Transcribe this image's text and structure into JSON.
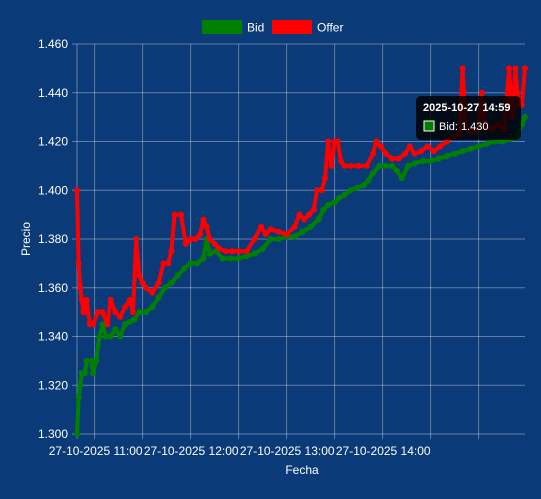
{
  "chart_data": {
    "type": "line",
    "xlabel": "Fecha",
    "ylabel": "Precio",
    "ylim": [
      1.3,
      1.46
    ],
    "x_range": [
      "2025-10-27 10:19",
      "2025-10-27 14:59"
    ],
    "x_ticks": [
      "27-10-2025 11:00",
      "27-10-2025 12:00",
      "27-10-2025 13:00",
      "27-10-2025 14:00"
    ],
    "y_ticks": [
      "1.300",
      "1.320",
      "1.340",
      "1.360",
      "1.380",
      "1.400",
      "1.420",
      "1.440",
      "1.460"
    ],
    "legend_position": "top-center",
    "grid": true,
    "series": [
      {
        "name": "Bid",
        "color": "#008000",
        "points": [
          [
            "2025-10-27 10:19",
            1.3
          ],
          [
            "2025-10-27 10:20",
            1.315
          ],
          [
            "2025-10-27 10:21",
            1.32
          ],
          [
            "2025-10-27 10:22",
            1.325
          ],
          [
            "2025-10-27 10:24",
            1.325
          ],
          [
            "2025-10-27 10:25",
            1.33
          ],
          [
            "2025-10-27 10:28",
            1.33
          ],
          [
            "2025-10-27 10:29",
            1.325
          ],
          [
            "2025-10-27 10:31",
            1.33
          ],
          [
            "2025-10-27 10:33",
            1.34
          ],
          [
            "2025-10-27 10:35",
            1.345
          ],
          [
            "2025-10-27 10:37",
            1.34
          ],
          [
            "2025-10-27 10:40",
            1.34
          ],
          [
            "2025-10-27 10:43",
            1.343
          ],
          [
            "2025-10-27 10:46",
            1.34
          ],
          [
            "2025-10-27 10:49",
            1.345
          ],
          [
            "2025-10-27 10:52",
            1.346
          ],
          [
            "2025-10-27 10:55",
            1.347
          ],
          [
            "2025-10-27 10:58",
            1.35
          ],
          [
            "2025-10-27 11:02",
            1.35
          ],
          [
            "2025-10-27 11:06",
            1.352
          ],
          [
            "2025-10-27 11:10",
            1.356
          ],
          [
            "2025-10-27 11:14",
            1.36
          ],
          [
            "2025-10-27 11:18",
            1.362
          ],
          [
            "2025-10-27 11:22",
            1.365
          ],
          [
            "2025-10-27 11:26",
            1.368
          ],
          [
            "2025-10-27 11:30",
            1.37
          ],
          [
            "2025-10-27 11:34",
            1.37
          ],
          [
            "2025-10-27 11:38",
            1.372
          ],
          [
            "2025-10-27 11:40",
            1.38
          ],
          [
            "2025-10-27 11:42",
            1.374
          ],
          [
            "2025-10-27 11:46",
            1.375
          ],
          [
            "2025-10-27 11:50",
            1.372
          ],
          [
            "2025-10-27 11:55",
            1.372
          ],
          [
            "2025-10-27 12:00",
            1.372
          ],
          [
            "2025-10-27 12:05",
            1.373
          ],
          [
            "2025-10-27 12:10",
            1.374
          ],
          [
            "2025-10-27 12:15",
            1.376
          ],
          [
            "2025-10-27 12:20",
            1.38
          ],
          [
            "2025-10-27 12:25",
            1.38
          ],
          [
            "2025-10-27 12:30",
            1.381
          ],
          [
            "2025-10-27 12:35",
            1.381
          ],
          [
            "2025-10-27 12:40",
            1.383
          ],
          [
            "2025-10-27 12:45",
            1.385
          ],
          [
            "2025-10-27 12:50",
            1.388
          ],
          [
            "2025-10-27 12:53",
            1.392
          ],
          [
            "2025-10-27 12:56",
            1.394
          ],
          [
            "2025-10-27 13:00",
            1.395
          ],
          [
            "2025-10-27 13:03",
            1.397
          ],
          [
            "2025-10-27 13:06",
            1.398
          ],
          [
            "2025-10-27 13:10",
            1.4
          ],
          [
            "2025-10-27 13:14",
            1.401
          ],
          [
            "2025-10-27 13:18",
            1.402
          ],
          [
            "2025-10-27 13:21",
            1.404
          ],
          [
            "2025-10-27 13:24",
            1.407
          ],
          [
            "2025-10-27 13:28",
            1.41
          ],
          [
            "2025-10-27 13:32",
            1.41
          ],
          [
            "2025-10-27 13:36",
            1.41
          ],
          [
            "2025-10-27 13:39",
            1.408
          ],
          [
            "2025-10-27 13:42",
            1.405
          ],
          [
            "2025-10-27 13:46",
            1.41
          ],
          [
            "2025-10-27 13:50",
            1.411
          ],
          [
            "2025-10-27 13:55",
            1.412
          ],
          [
            "2025-10-27 14:00",
            1.412
          ],
          [
            "2025-10-27 14:05",
            1.413
          ],
          [
            "2025-10-27 14:10",
            1.414
          ],
          [
            "2025-10-27 14:15",
            1.415
          ],
          [
            "2025-10-27 14:20",
            1.416
          ],
          [
            "2025-10-27 14:25",
            1.417
          ],
          [
            "2025-10-27 14:30",
            1.418
          ],
          [
            "2025-10-27 14:35",
            1.419
          ],
          [
            "2025-10-27 14:40",
            1.42
          ],
          [
            "2025-10-27 14:45",
            1.42
          ],
          [
            "2025-10-27 14:50",
            1.421
          ],
          [
            "2025-10-27 14:54",
            1.422
          ],
          [
            "2025-10-27 14:57",
            1.427
          ],
          [
            "2025-10-27 14:59",
            1.43
          ]
        ]
      },
      {
        "name": "Offer",
        "color": "#ff0000",
        "points": [
          [
            "2025-10-27 10:19",
            1.4
          ],
          [
            "2025-10-27 10:20",
            1.37
          ],
          [
            "2025-10-27 10:21",
            1.36
          ],
          [
            "2025-10-27 10:22",
            1.355
          ],
          [
            "2025-10-27 10:23",
            1.35
          ],
          [
            "2025-10-27 10:24",
            1.35
          ],
          [
            "2025-10-27 10:25",
            1.355
          ],
          [
            "2025-10-27 10:27",
            1.345
          ],
          [
            "2025-10-27 10:29",
            1.345
          ],
          [
            "2025-10-27 10:32",
            1.35
          ],
          [
            "2025-10-27 10:35",
            1.35
          ],
          [
            "2025-10-27 10:38",
            1.345
          ],
          [
            "2025-10-27 10:40",
            1.355
          ],
          [
            "2025-10-27 10:43",
            1.35
          ],
          [
            "2025-10-27 10:46",
            1.348
          ],
          [
            "2025-10-27 10:49",
            1.352
          ],
          [
            "2025-10-27 10:52",
            1.355
          ],
          [
            "2025-10-27 10:54",
            1.35
          ],
          [
            "2025-10-27 10:56",
            1.38
          ],
          [
            "2025-10-27 10:58",
            1.365
          ],
          [
            "2025-10-27 11:00",
            1.362
          ],
          [
            "2025-10-27 11:02",
            1.36
          ],
          [
            "2025-10-27 11:06",
            1.358
          ],
          [
            "2025-10-27 11:10",
            1.362
          ],
          [
            "2025-10-27 11:13",
            1.37
          ],
          [
            "2025-10-27 11:16",
            1.37
          ],
          [
            "2025-10-27 11:18",
            1.375
          ],
          [
            "2025-10-27 11:20",
            1.39
          ],
          [
            "2025-10-27 11:24",
            1.39
          ],
          [
            "2025-10-27 11:27",
            1.378
          ],
          [
            "2025-10-27 11:30",
            1.38
          ],
          [
            "2025-10-27 11:33",
            1.38
          ],
          [
            "2025-10-27 11:36",
            1.382
          ],
          [
            "2025-10-27 11:38",
            1.388
          ],
          [
            "2025-10-27 11:40",
            1.385
          ],
          [
            "2025-10-27 11:42",
            1.38
          ],
          [
            "2025-10-27 11:45",
            1.378
          ],
          [
            "2025-10-27 11:48",
            1.376
          ],
          [
            "2025-10-27 11:52",
            1.375
          ],
          [
            "2025-10-27 11:56",
            1.375
          ],
          [
            "2025-10-27 12:00",
            1.375
          ],
          [
            "2025-10-27 12:05",
            1.375
          ],
          [
            "2025-10-27 12:10",
            1.38
          ],
          [
            "2025-10-27 12:14",
            1.385
          ],
          [
            "2025-10-27 12:17",
            1.382
          ],
          [
            "2025-10-27 12:20",
            1.384
          ],
          [
            "2025-10-27 12:25",
            1.383
          ],
          [
            "2025-10-27 12:30",
            1.382
          ],
          [
            "2025-10-27 12:35",
            1.385
          ],
          [
            "2025-10-27 12:38",
            1.39
          ],
          [
            "2025-10-27 12:41",
            1.388
          ],
          [
            "2025-10-27 12:44",
            1.39
          ],
          [
            "2025-10-27 12:47",
            1.392
          ],
          [
            "2025-10-27 12:49",
            1.4
          ],
          [
            "2025-10-27 12:52",
            1.4
          ],
          [
            "2025-10-27 12:54",
            1.405
          ],
          [
            "2025-10-27 12:56",
            1.42
          ],
          [
            "2025-10-27 12:58",
            1.41
          ],
          [
            "2025-10-27 13:00",
            1.42
          ],
          [
            "2025-10-27 13:02",
            1.42
          ],
          [
            "2025-10-27 13:04",
            1.412
          ],
          [
            "2025-10-27 13:06",
            1.41
          ],
          [
            "2025-10-27 13:10",
            1.41
          ],
          [
            "2025-10-27 13:15",
            1.41
          ],
          [
            "2025-10-27 13:20",
            1.41
          ],
          [
            "2025-10-27 13:24",
            1.415
          ],
          [
            "2025-10-27 13:26",
            1.42
          ],
          [
            "2025-10-27 13:29",
            1.418
          ],
          [
            "2025-10-27 13:32",
            1.415
          ],
          [
            "2025-10-27 13:36",
            1.413
          ],
          [
            "2025-10-27 13:40",
            1.413
          ],
          [
            "2025-10-27 13:44",
            1.415
          ],
          [
            "2025-10-27 13:47",
            1.418
          ],
          [
            "2025-10-27 13:50",
            1.415
          ],
          [
            "2025-10-27 13:54",
            1.416
          ],
          [
            "2025-10-27 13:58",
            1.418
          ],
          [
            "2025-10-27 14:02",
            1.416
          ],
          [
            "2025-10-27 14:06",
            1.418
          ],
          [
            "2025-10-27 14:10",
            1.42
          ],
          [
            "2025-10-27 14:14",
            1.422
          ],
          [
            "2025-10-27 14:18",
            1.423
          ],
          [
            "2025-10-27 14:20",
            1.45
          ],
          [
            "2025-10-27 14:22",
            1.425
          ],
          [
            "2025-10-27 14:26",
            1.424
          ],
          [
            "2025-10-27 14:30",
            1.425
          ],
          [
            "2025-10-27 14:32",
            1.44
          ],
          [
            "2025-10-27 14:34",
            1.426
          ],
          [
            "2025-10-27 14:38",
            1.425
          ],
          [
            "2025-10-27 14:42",
            1.427
          ],
          [
            "2025-10-27 14:46",
            1.425
          ],
          [
            "2025-10-27 14:49",
            1.45
          ],
          [
            "2025-10-27 14:51",
            1.43
          ],
          [
            "2025-10-27 14:53",
            1.45
          ],
          [
            "2025-10-27 14:55",
            1.435
          ],
          [
            "2025-10-27 14:57",
            1.435
          ],
          [
            "2025-10-27 14:59",
            1.45
          ]
        ]
      }
    ]
  },
  "tooltip": {
    "title": "2025-10-27 14:59",
    "series": "Bid",
    "text": "Bid: 1.430",
    "x": "2025-10-27 14:59",
    "y": 1.43
  }
}
